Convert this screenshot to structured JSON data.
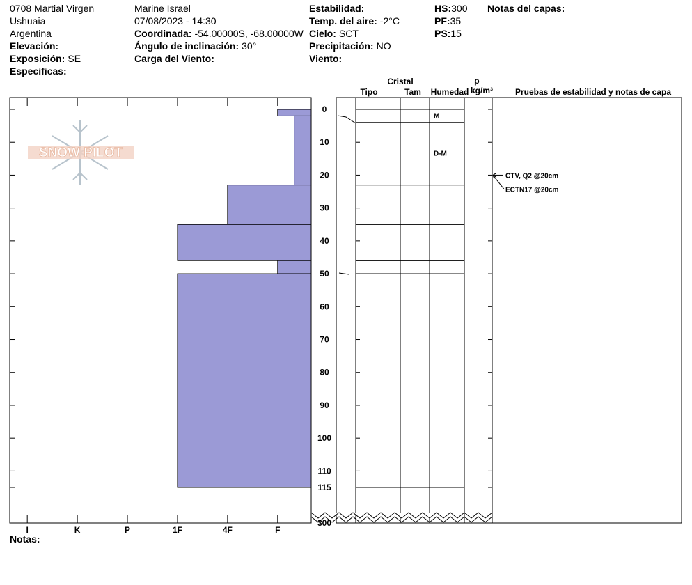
{
  "header": {
    "columns": [
      [
        {
          "value": "0708 Martial Virgen"
        },
        {
          "value": "Ushuaia"
        },
        {
          "value": "Argentina"
        },
        {
          "label": "Elevación:"
        },
        {
          "label": "Exposición:",
          "value": "SE"
        },
        {
          "label": "Especificas:"
        }
      ],
      [
        {
          "value": "Marine Israel"
        },
        {
          "value": "07/08/2023 - 14:30"
        },
        {
          "label": "Coordinada:",
          "value": "-54.00000S, -68.00000W"
        },
        {
          "label": "Ángulo de inclinación:",
          "value": "30°"
        },
        {
          "label": "Carga del Viento:"
        }
      ],
      [
        {
          "label": "Estabilidad:"
        },
        {
          "label": "Temp. del aire:",
          "value": "-2°C"
        },
        {
          "label": "Cielo:",
          "value": "SCT"
        },
        {
          "label": "Precipitación:",
          "value": "NO"
        },
        {
          "label": "Viento:"
        }
      ],
      [
        {
          "label": "HS:",
          "value": "300"
        },
        {
          "label": "PF:",
          "value": "35"
        },
        {
          "label": "PS:",
          "value": "15"
        }
      ],
      [
        {
          "label": "Notas del capas:"
        }
      ]
    ]
  },
  "logo": "SNOW PILOT",
  "chart_data": {
    "type": "snow-profile",
    "column_headers": {
      "crystal": "Cristal",
      "type": "Tipo",
      "size": "Tam",
      "humidity": "Humedad",
      "density": "ρ",
      "density_unit": "kg/m³",
      "tests": "Pruebas de estabilidad y notas de capa"
    },
    "xlim": [
      6.35,
      0.33
    ],
    "xticks": [
      {
        "value": 6,
        "label": "I"
      },
      {
        "value": 5,
        "label": "K"
      },
      {
        "value": 4,
        "label": "P"
      },
      {
        "value": 3,
        "label": "1F"
      },
      {
        "value": 2,
        "label": "4F"
      },
      {
        "value": 1,
        "label": "F"
      }
    ],
    "ylim": [
      0,
      300
    ],
    "axis_break": 115,
    "yticks": [
      0,
      10,
      20,
      30,
      40,
      50,
      60,
      70,
      80,
      90,
      100,
      110,
      115,
      300
    ],
    "color": "#9b9ad6",
    "hardness_layers": [
      {
        "top": 0,
        "bottom": 2,
        "hardness": 1
      },
      {
        "top": 2,
        "bottom": 23,
        "hardness": 0.67
      },
      {
        "top": 23,
        "bottom": 35,
        "hardness": 2
      },
      {
        "top": 35,
        "bottom": 46,
        "hardness": 3
      },
      {
        "top": 46,
        "bottom": 50,
        "hardness": 1
      },
      {
        "top": 50,
        "bottom": 115,
        "hardness": 3
      }
    ],
    "crystal_layers": [
      {
        "top": 0,
        "bottom": 4,
        "humidity": "M"
      },
      {
        "top": 4,
        "bottom": 23,
        "humidity": "D-M"
      },
      {
        "top": 23,
        "bottom": 35
      },
      {
        "top": 35,
        "bottom": 46
      },
      {
        "top": 46,
        "bottom": 50
      },
      {
        "top": 50,
        "bottom": 115
      }
    ],
    "tests": [
      {
        "label": "CTV, Q2 @20cm",
        "depth": 20
      },
      {
        "label": "ECTN17 @20cm",
        "depth": 20
      }
    ]
  },
  "footer": {
    "notes": "Notas:"
  }
}
